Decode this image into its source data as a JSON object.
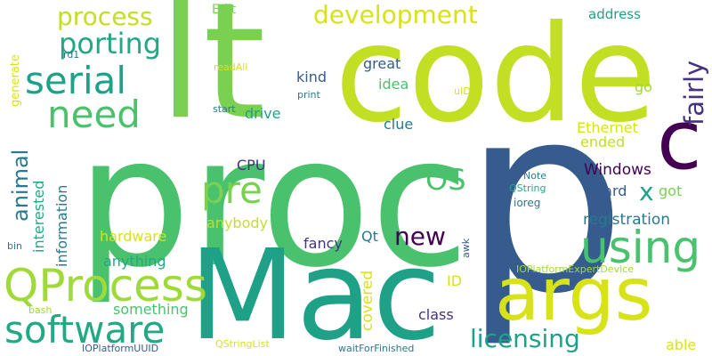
{
  "palette": {
    "background": "#ffffff",
    "yellow": "#d8e219",
    "lime": "#a0da39",
    "green": "#4ac16d",
    "mint": "#7ad151",
    "teal": "#1fa187",
    "sea": "#2a788e",
    "blue": "#365c8d",
    "purple": "#440154",
    "indigo": "#46327e"
  },
  "words": [
    {
      "text": "proc",
      "color": "#4ac16d"
    },
    {
      "text": "p",
      "color": "#365c8d"
    },
    {
      "text": "code",
      "color": "#c2df23"
    },
    {
      "text": "lt",
      "color": "#7ad151"
    },
    {
      "text": "Mac",
      "color": "#1fa187"
    },
    {
      "text": "args",
      "color": "#d8e219"
    },
    {
      "text": "c",
      "color": "#440154"
    },
    {
      "text": "QProcess",
      "color": "#a0da39"
    },
    {
      "text": "software",
      "color": "#22a884"
    },
    {
      "text": "using",
      "color": "#4ac16d"
    },
    {
      "text": "serial",
      "color": "#1fa187"
    },
    {
      "text": "need",
      "color": "#4ac16d"
    },
    {
      "text": "pre",
      "color": "#7ad151"
    },
    {
      "text": "porting",
      "color": "#22a884"
    },
    {
      "text": "process",
      "color": "#c2df23"
    },
    {
      "text": "development",
      "color": "#d8e219"
    },
    {
      "text": "fairly",
      "color": "#46327e"
    },
    {
      "text": "OS",
      "color": "#4ac16d"
    },
    {
      "text": "new",
      "color": "#440154"
    },
    {
      "text": "licensing",
      "color": "#1fa187"
    },
    {
      "text": "animal",
      "color": "#2a788e"
    },
    {
      "text": "x",
      "color": "#1fa187"
    },
    {
      "text": "interested",
      "color": "#22a884"
    },
    {
      "text": "information",
      "color": "#2a788e"
    },
    {
      "text": "registration",
      "color": "#2a788e"
    },
    {
      "text": "Windows",
      "color": "#440154"
    },
    {
      "text": "hardware",
      "color": "#d8e219"
    },
    {
      "text": "anything",
      "color": "#22a884"
    },
    {
      "text": "something",
      "color": "#4ac16d"
    },
    {
      "text": "covered",
      "color": "#d8e219"
    },
    {
      "text": "class",
      "color": "#46327e"
    },
    {
      "text": "able",
      "color": "#d8e219"
    },
    {
      "text": "Ethernet",
      "color": "#d8e219"
    },
    {
      "text": "ended",
      "color": "#c2df23"
    },
    {
      "text": "hard",
      "color": "#365c8d"
    },
    {
      "text": "got",
      "color": "#7ad151"
    },
    {
      "text": "great",
      "color": "#365c8d"
    },
    {
      "text": "idea",
      "color": "#4ac16d"
    },
    {
      "text": "kind",
      "color": "#365c8d"
    },
    {
      "text": "drive",
      "color": "#1fa187"
    },
    {
      "text": "clue",
      "color": "#2a788e"
    },
    {
      "text": "CPU",
      "color": "#46327e"
    },
    {
      "text": "anybody",
      "color": "#c2df23"
    },
    {
      "text": "fancy",
      "color": "#46327e"
    },
    {
      "text": "Qt",
      "color": "#2a788e"
    },
    {
      "text": "ID",
      "color": "#d8e219"
    },
    {
      "text": "go",
      "color": "#a0da39"
    },
    {
      "text": "address",
      "color": "#1fa187"
    },
    {
      "text": "Edit",
      "color": "#7ad151"
    },
    {
      "text": "generate",
      "color": "#d8e219"
    },
    {
      "text": "rd1",
      "color": "#2a788e"
    },
    {
      "text": "readAll",
      "color": "#d8e219"
    },
    {
      "text": "start",
      "color": "#2a788e"
    },
    {
      "text": "print",
      "color": "#2a788e"
    },
    {
      "text": "uID",
      "color": "#d8e219"
    },
    {
      "text": "Note",
      "color": "#2a788e"
    },
    {
      "text": "QString",
      "color": "#22a884"
    },
    {
      "text": "ioreg",
      "color": "#2a788e"
    },
    {
      "text": "bin",
      "color": "#2a788e"
    },
    {
      "text": "bash",
      "color": "#a0da39"
    },
    {
      "text": "awk",
      "color": "#365c8d"
    },
    {
      "text": "IOPlatformExpertDevice",
      "color": "#a0da39"
    },
    {
      "text": "IOPlatformUUID",
      "color": "#365c8d"
    },
    {
      "text": "QStringList",
      "color": "#d8e219"
    },
    {
      "text": "waitForFinished",
      "color": "#2a788e"
    }
  ]
}
